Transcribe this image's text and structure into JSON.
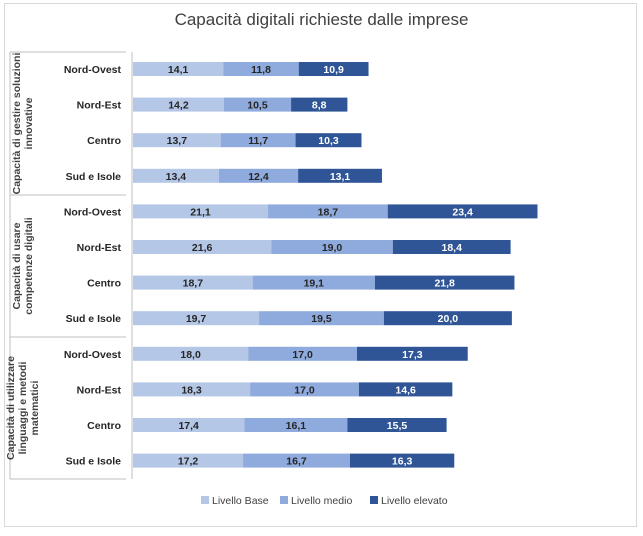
{
  "chart_data": {
    "type": "bar",
    "orientation": "horizontal",
    "stacked": true,
    "title": "Capacità digitali richieste dalle imprese",
    "xlim": [
      0,
      70
    ],
    "grid": false,
    "legend_position": "bottom",
    "series": [
      {
        "name": "Livello Base",
        "color": "#b4c7e7",
        "values": [
          14.1,
          14.2,
          13.7,
          13.4,
          21.1,
          21.6,
          18.7,
          19.7,
          18.0,
          18.3,
          17.4,
          17.2
        ],
        "labels": [
          "14,1",
          "14,2",
          "13,7",
          "13,4",
          "21,1",
          "21,6",
          "18,7",
          "19,7",
          "18,0",
          "18,3",
          "17,4",
          "17,2"
        ]
      },
      {
        "name": "Livello medio",
        "color": "#8faadc",
        "values": [
          11.8,
          10.5,
          11.7,
          12.4,
          18.7,
          19.0,
          19.1,
          19.5,
          17.0,
          17.0,
          16.1,
          16.7
        ],
        "labels": [
          "11,8",
          "10,5",
          "11,7",
          "12,4",
          "18,7",
          "19,0",
          "19,1",
          "19,5",
          "17,0",
          "17,0",
          "16,1",
          "16,7"
        ]
      },
      {
        "name": "Livello elevato",
        "color": "#2f5597",
        "values": [
          10.9,
          8.8,
          10.3,
          13.1,
          23.4,
          18.4,
          21.8,
          20.0,
          17.3,
          14.6,
          15.5,
          16.3
        ],
        "labels": [
          "10,9",
          "8,8",
          "10,3",
          "13,1",
          "23,4",
          "18,4",
          "21,8",
          "20,0",
          "17,3",
          "14,6",
          "15,5",
          "16,3"
        ]
      }
    ],
    "groups": [
      {
        "label": "Capacità di gestire soluzioni innovative",
        "lines": [
          "Capacità di gestire soluzioni",
          "innovative"
        ],
        "categories": [
          "Nord-Ovest",
          "Nord-Est",
          "Centro",
          "Sud e Isole"
        ]
      },
      {
        "label": "Capacità di usare competenze digitali",
        "lines": [
          "Capacità di usare",
          "competenze digitali"
        ],
        "categories": [
          "Nord-Ovest",
          "Nord-Est",
          "Centro",
          "Sud e Isole"
        ]
      },
      {
        "label": "Capacità di utilizzare linguaggi e metodi matematici",
        "lines": [
          "Capacità di utilizzare",
          "linguaggi e metodi",
          "matematici"
        ],
        "categories": [
          "Nord-Ovest",
          "Nord-Est",
          "Centro",
          "Sud e Isole"
        ]
      }
    ]
  }
}
